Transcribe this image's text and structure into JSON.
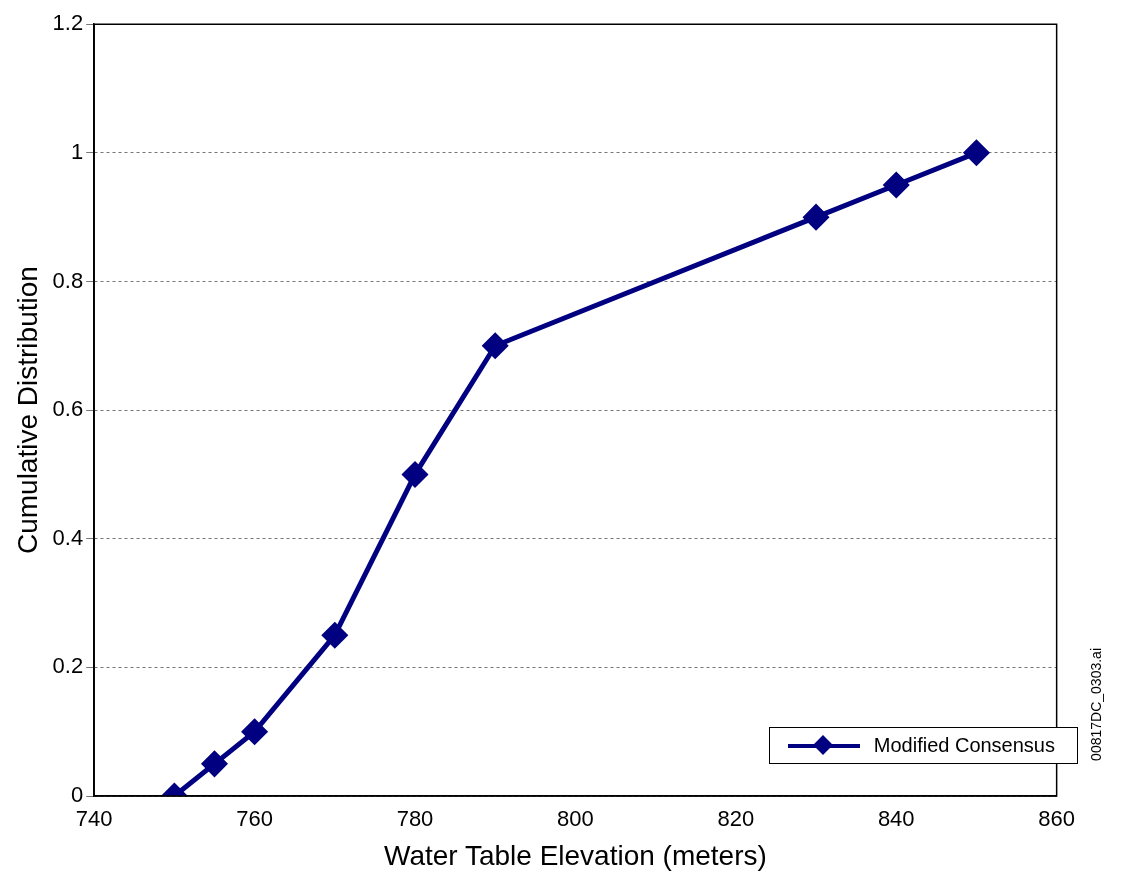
{
  "chart_data": {
    "type": "line",
    "xlabel": "Water Table Elevation (meters)",
    "ylabel": "Cumulative Distribution",
    "x": [
      750,
      755,
      760,
      770,
      780,
      790,
      830,
      840,
      850
    ],
    "series": [
      {
        "name": "Modified Consensus",
        "color": "#000080",
        "values": [
          0,
          0.05,
          0.1,
          0.25,
          0.5,
          0.7,
          0.9,
          0.95,
          1
        ]
      }
    ],
    "xlim": [
      740,
      860
    ],
    "xticks": [
      740,
      760,
      780,
      800,
      820,
      840,
      860
    ],
    "ylim": [
      0,
      1.2
    ],
    "yticks": [
      0,
      0.2,
      0.4,
      0.6,
      0.8,
      1,
      1.2
    ],
    "grid": "y",
    "legend": "bottom right",
    "marker": "diamond",
    "line_style": "solid",
    "annotations": [
      "00817DC_0303.ai"
    ]
  }
}
